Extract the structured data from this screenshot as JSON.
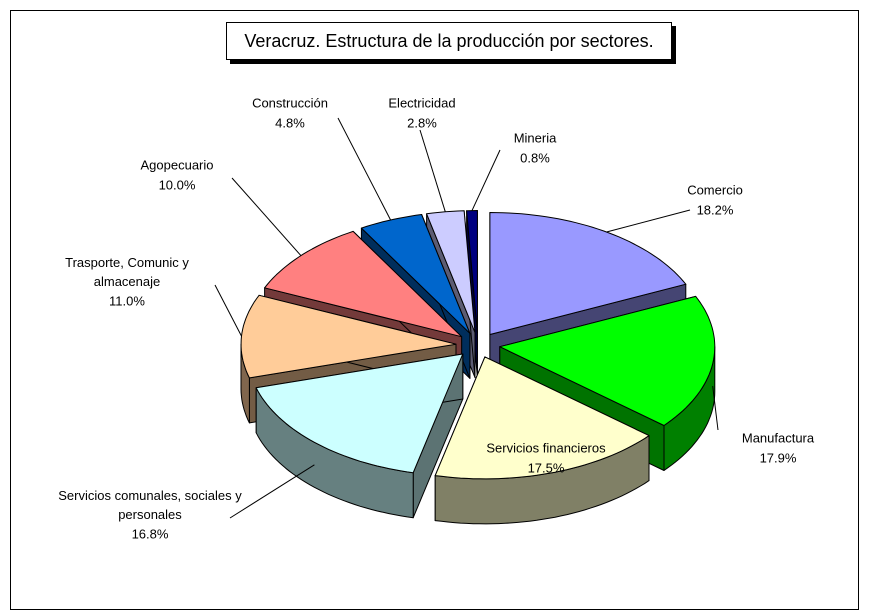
{
  "chart_data": {
    "type": "pie",
    "title": "Veracruz. Estructura de la producción por sectores.",
    "categories": [
      "Comercio",
      "Manufactura",
      "Servicios financieros",
      "Servicios comunales, sociales y personales",
      "Trasporte, Comunic y almacenaje",
      "Agopecuario",
      "Construcción",
      "Electricidad",
      "Mineria"
    ],
    "values": [
      18.2,
      17.9,
      17.5,
      16.8,
      11.0,
      10.0,
      4.8,
      2.8,
      0.8
    ],
    "value_labels": [
      "18.2%",
      "17.9%",
      "17.5%",
      "16.8%",
      "11.0%",
      "10.0%",
      "4.8%",
      "2.8%",
      "0.8%"
    ],
    "colors": [
      "#9999ff",
      "#00ff00",
      "#ffffcc",
      "#ccffff",
      "#ffcc99",
      "#ff8080",
      "#0066cc",
      "#ccccff",
      "#000080"
    ]
  }
}
